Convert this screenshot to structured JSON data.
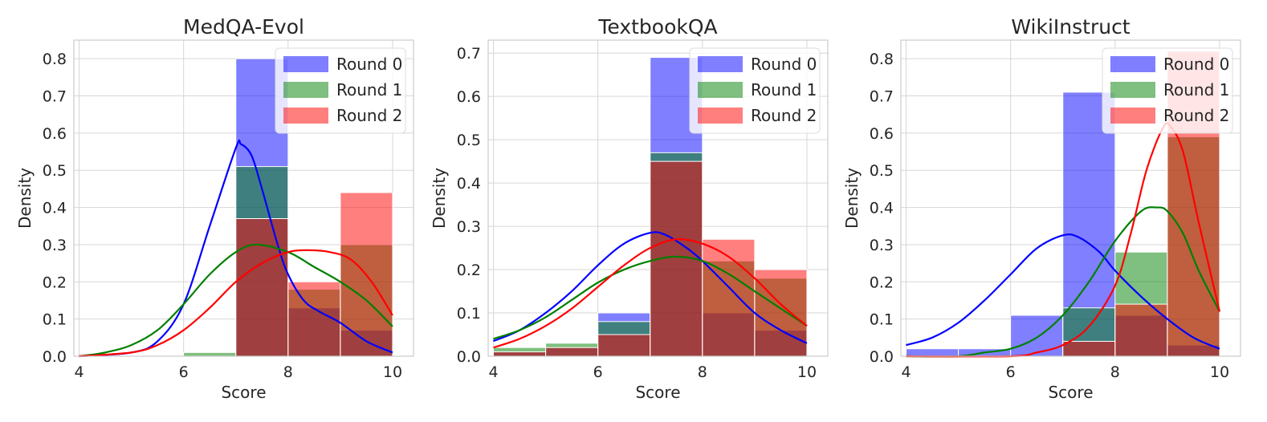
{
  "chart_data": [
    {
      "type": "bar",
      "title": "MedQA-Evol",
      "xlabel": "Score",
      "ylabel": "Density",
      "xlim": [
        3.9,
        10.4
      ],
      "ylim": [
        0,
        0.85
      ],
      "xticks": [
        4,
        6,
        8,
        10
      ],
      "yticks": [
        0.0,
        0.1,
        0.2,
        0.3,
        0.4,
        0.5,
        0.6,
        0.7,
        0.8
      ],
      "ytick_labels": [
        "0.0",
        "0.1",
        "0.2",
        "0.3",
        "0.4",
        "0.5",
        "0.6",
        "0.7",
        "0.8"
      ],
      "bin_edges": [
        6,
        7,
        8,
        9,
        10
      ],
      "grid": true,
      "legend_position": "upper right",
      "series": [
        {
          "name": "Round 0",
          "color": "#0000ff",
          "hist": [
            0.0,
            0.8,
            0.13,
            0.07
          ],
          "kde": [
            [
              4,
              0
            ],
            [
              5,
              0.01
            ],
            [
              5.5,
              0.04
            ],
            [
              6,
              0.14
            ],
            [
              6.5,
              0.35
            ],
            [
              7,
              0.56
            ],
            [
              7.1,
              0.57
            ],
            [
              7.3,
              0.54
            ],
            [
              7.5,
              0.45
            ],
            [
              7.8,
              0.3
            ],
            [
              8,
              0.22
            ],
            [
              8.3,
              0.15
            ],
            [
              8.6,
              0.12
            ],
            [
              9,
              0.09
            ],
            [
              9.5,
              0.04
            ],
            [
              10,
              0.01
            ]
          ]
        },
        {
          "name": "Round 1",
          "color": "#008000",
          "hist": [
            0.01,
            0.51,
            0.18,
            0.3
          ],
          "kde": [
            [
              4,
              0.0
            ],
            [
              4.5,
              0.01
            ],
            [
              5,
              0.03
            ],
            [
              5.5,
              0.07
            ],
            [
              6,
              0.14
            ],
            [
              6.5,
              0.22
            ],
            [
              7,
              0.28
            ],
            [
              7.4,
              0.3
            ],
            [
              8,
              0.28
            ],
            [
              8.5,
              0.24
            ],
            [
              9,
              0.2
            ],
            [
              9.5,
              0.15
            ],
            [
              10,
              0.08
            ]
          ]
        },
        {
          "name": "Round 2",
          "color": "#ff0000",
          "hist": [
            0.0,
            0.37,
            0.2,
            0.44
          ],
          "kde": [
            [
              4,
              0.0
            ],
            [
              5,
              0.01
            ],
            [
              5.5,
              0.03
            ],
            [
              6,
              0.07
            ],
            [
              6.5,
              0.13
            ],
            [
              7,
              0.2
            ],
            [
              7.5,
              0.25
            ],
            [
              8,
              0.28
            ],
            [
              8.4,
              0.285
            ],
            [
              8.8,
              0.28
            ],
            [
              9.2,
              0.26
            ],
            [
              9.6,
              0.2
            ],
            [
              10,
              0.11
            ]
          ]
        }
      ]
    },
    {
      "type": "bar",
      "title": "TextbookQA",
      "xlabel": "Score",
      "ylabel": "Density",
      "xlim": [
        3.9,
        10.4
      ],
      "ylim": [
        0,
        0.73
      ],
      "xticks": [
        4,
        6,
        8,
        10
      ],
      "yticks": [
        0.0,
        0.1,
        0.2,
        0.3,
        0.4,
        0.5,
        0.6,
        0.7
      ],
      "ytick_labels": [
        "0.0",
        "0.1",
        "0.2",
        "0.3",
        "0.4",
        "0.5",
        "0.6",
        "0.7"
      ],
      "bin_edges": [
        4,
        5,
        6,
        7,
        8,
        9,
        10
      ],
      "grid": true,
      "legend_position": "upper right",
      "series": [
        {
          "name": "Round 0",
          "color": "#0000ff",
          "hist": [
            0.01,
            0.02,
            0.1,
            0.69,
            0.1,
            0.06
          ],
          "kde": [
            [
              4,
              0.035
            ],
            [
              4.5,
              0.06
            ],
            [
              5,
              0.1
            ],
            [
              5.5,
              0.15
            ],
            [
              6,
              0.21
            ],
            [
              6.5,
              0.26
            ],
            [
              7,
              0.285
            ],
            [
              7.3,
              0.28
            ],
            [
              7.7,
              0.25
            ],
            [
              8,
              0.22
            ],
            [
              8.5,
              0.16
            ],
            [
              9,
              0.1
            ],
            [
              9.5,
              0.06
            ],
            [
              10,
              0.03
            ]
          ]
        },
        {
          "name": "Round 1",
          "color": "#008000",
          "hist": [
            0.02,
            0.03,
            0.08,
            0.47,
            0.22,
            0.18
          ],
          "kde": [
            [
              4,
              0.04
            ],
            [
              4.5,
              0.06
            ],
            [
              5,
              0.09
            ],
            [
              5.5,
              0.13
            ],
            [
              6,
              0.17
            ],
            [
              6.5,
              0.2
            ],
            [
              7,
              0.22
            ],
            [
              7.5,
              0.23
            ],
            [
              8,
              0.22
            ],
            [
              8.5,
              0.19
            ],
            [
              9,
              0.15
            ],
            [
              9.5,
              0.11
            ],
            [
              10,
              0.07
            ]
          ]
        },
        {
          "name": "Round 2",
          "color": "#ff0000",
          "hist": [
            0.01,
            0.02,
            0.05,
            0.45,
            0.27,
            0.2
          ],
          "kde": [
            [
              4,
              0.02
            ],
            [
              4.5,
              0.04
            ],
            [
              5,
              0.07
            ],
            [
              5.5,
              0.11
            ],
            [
              6,
              0.16
            ],
            [
              6.5,
              0.21
            ],
            [
              7,
              0.25
            ],
            [
              7.5,
              0.27
            ],
            [
              8,
              0.26
            ],
            [
              8.5,
              0.23
            ],
            [
              9,
              0.18
            ],
            [
              9.5,
              0.12
            ],
            [
              10,
              0.07
            ]
          ]
        }
      ]
    },
    {
      "type": "bar",
      "title": "WikiInstruct",
      "xlabel": "Score",
      "ylabel": "Density",
      "xlim": [
        3.9,
        10.4
      ],
      "ylim": [
        0,
        0.85
      ],
      "xticks": [
        4,
        6,
        8,
        10
      ],
      "yticks": [
        0.0,
        0.1,
        0.2,
        0.3,
        0.4,
        0.5,
        0.6,
        0.7,
        0.8
      ],
      "ytick_labels": [
        "0.0",
        "0.1",
        "0.2",
        "0.3",
        "0.4",
        "0.5",
        "0.6",
        "0.7",
        "0.8"
      ],
      "bin_edges": [
        4,
        5,
        6,
        7,
        8,
        9,
        10
      ],
      "grid": true,
      "legend_position": "upper right",
      "series": [
        {
          "name": "Round 0",
          "color": "#0000ff",
          "hist": [
            0.02,
            0.02,
            0.11,
            0.71,
            0.11,
            0.03
          ],
          "kde": [
            [
              4,
              0.03
            ],
            [
              4.5,
              0.05
            ],
            [
              5,
              0.09
            ],
            [
              5.5,
              0.15
            ],
            [
              6,
              0.22
            ],
            [
              6.5,
              0.29
            ],
            [
              7,
              0.325
            ],
            [
              7.3,
              0.32
            ],
            [
              7.7,
              0.28
            ],
            [
              8,
              0.23
            ],
            [
              8.5,
              0.16
            ],
            [
              9,
              0.1
            ],
            [
              9.5,
              0.05
            ],
            [
              10,
              0.02
            ]
          ]
        },
        {
          "name": "Round 1",
          "color": "#008000",
          "hist": [
            0.0,
            0.0,
            0.0,
            0.13,
            0.28,
            0.59
          ],
          "kde": [
            [
              4,
              0.0
            ],
            [
              5,
              0.0
            ],
            [
              5.5,
              0.01
            ],
            [
              6,
              0.02
            ],
            [
              6.5,
              0.05
            ],
            [
              7,
              0.11
            ],
            [
              7.5,
              0.2
            ],
            [
              8,
              0.31
            ],
            [
              8.5,
              0.39
            ],
            [
              8.8,
              0.4
            ],
            [
              9,
              0.39
            ],
            [
              9.3,
              0.33
            ],
            [
              9.6,
              0.23
            ],
            [
              10,
              0.12
            ]
          ]
        },
        {
          "name": "Round 2",
          "color": "#ff0000",
          "hist": [
            0.0,
            0.0,
            0.0,
            0.04,
            0.14,
            0.82
          ],
          "kde": [
            [
              4,
              0.0
            ],
            [
              6,
              0.0
            ],
            [
              6.5,
              0.01
            ],
            [
              7,
              0.03
            ],
            [
              7.5,
              0.08
            ],
            [
              8,
              0.19
            ],
            [
              8.3,
              0.33
            ],
            [
              8.6,
              0.5
            ],
            [
              8.9,
              0.61
            ],
            [
              9.05,
              0.62
            ],
            [
              9.3,
              0.55
            ],
            [
              9.6,
              0.36
            ],
            [
              10,
              0.12
            ]
          ]
        }
      ]
    }
  ]
}
